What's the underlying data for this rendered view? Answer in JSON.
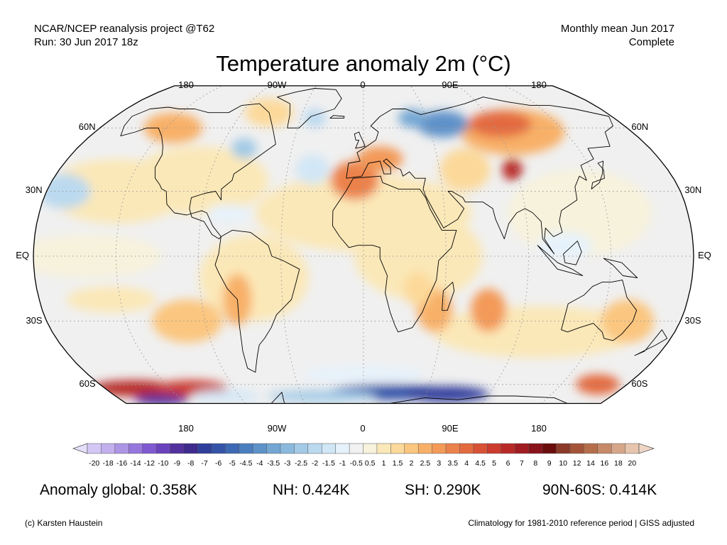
{
  "header": {
    "left_line1": "NCAR/NCEP reanalysis project @T62",
    "left_line2": "Run: 30 Jun 2017 18z",
    "right_line1": "Monthly mean Jun 2017",
    "right_line2": "Complete"
  },
  "title": "Temperature anomaly 2m (°C)",
  "map": {
    "projection": "robinson",
    "lon_labels_top": [
      "180",
      "90W",
      "0",
      "90E",
      "180"
    ],
    "lon_labels_bottom": [
      "180",
      "90W",
      "0",
      "90E",
      "180"
    ],
    "lat_labels": [
      "60N",
      "30N",
      "EQ",
      "30S",
      "60S"
    ],
    "graticule": "dotted",
    "ocean_color": "#f0f0f0",
    "coastline_color": "#000000"
  },
  "colorbar": {
    "labels": [
      "-20",
      "-18",
      "-16",
      "-14",
      "-12",
      "-10",
      "-9",
      "-8",
      "-7",
      "-6",
      "-5",
      "-4.5",
      "-4",
      "-3.5",
      "-3",
      "-2.5",
      "-2",
      "-1.5",
      "-1",
      "-0.5",
      "0.5",
      "1",
      "1.5",
      "2",
      "2.5",
      "3",
      "3.5",
      "4",
      "4.5",
      "5",
      "6",
      "7",
      "8",
      "9",
      "10",
      "12",
      "14",
      "16",
      "18",
      "20"
    ],
    "colors": [
      "#d4c7f5",
      "#c2b0ee",
      "#ad95e6",
      "#9677de",
      "#8059d1",
      "#6b42bd",
      "#52309e",
      "#3d2a8c",
      "#303e9b",
      "#3554a8",
      "#3d68b3",
      "#4a7ebf",
      "#5e92c9",
      "#73a6d3",
      "#8bb9dd",
      "#a3cae6",
      "#bbd9ef",
      "#d1e7f6",
      "#e6f2fb",
      "#f2f2f2",
      "#f7f2dc",
      "#fbe8b8",
      "#fcd99a",
      "#fbc67f",
      "#f8b068",
      "#f39a58",
      "#ec824b",
      "#e36a3f",
      "#d85236",
      "#cc3b2e",
      "#b82a27",
      "#a01c20",
      "#8a121a",
      "#6b0d0d",
      "#8b3a2a",
      "#a35438",
      "#b56e4c",
      "#c68a68",
      "#d6a68a",
      "#e6c4ad"
    ],
    "under_color": "#e6dffb",
    "over_color": "#f0d5c5"
  },
  "stats": {
    "global": "Anomaly global: 0.358K",
    "nh": "NH: 0.424K",
    "sh": "SH: 0.290K",
    "arctic": "90N-60S: 0.414K"
  },
  "footer": {
    "left": "(c) Karsten Haustein",
    "right": "Climatology for 1981-2010 reference period | GISS adjusted"
  }
}
